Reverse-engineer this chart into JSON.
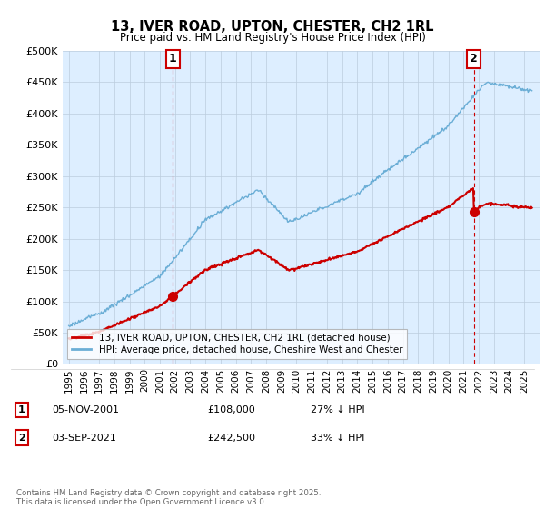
{
  "title": "13, IVER ROAD, UPTON, CHESTER, CH2 1RL",
  "subtitle": "Price paid vs. HM Land Registry's House Price Index (HPI)",
  "ylabel_ticks": [
    "£0",
    "£50K",
    "£100K",
    "£150K",
    "£200K",
    "£250K",
    "£300K",
    "£350K",
    "£400K",
    "£450K",
    "£500K"
  ],
  "ytick_values": [
    0,
    50000,
    100000,
    150000,
    200000,
    250000,
    300000,
    350000,
    400000,
    450000,
    500000
  ],
  "ylim": [
    0,
    500000
  ],
  "hpi_color": "#6baed6",
  "price_color": "#cc0000",
  "vline_color": "#cc0000",
  "plot_bg_color": "#ddeeff",
  "marker1_date": 2001.85,
  "marker1_price": 108000,
  "marker2_date": 2021.67,
  "marker2_price": 242500,
  "annotation1": "1",
  "annotation2": "2",
  "legend_label1": "13, IVER ROAD, UPTON, CHESTER, CH2 1RL (detached house)",
  "legend_label2": "HPI: Average price, detached house, Cheshire West and Chester",
  "table_row1": [
    "1",
    "05-NOV-2001",
    "£108,000",
    "27% ↓ HPI"
  ],
  "table_row2": [
    "2",
    "03-SEP-2021",
    "£242,500",
    "33% ↓ HPI"
  ],
  "footer": "Contains HM Land Registry data © Crown copyright and database right 2025.\nThis data is licensed under the Open Government Licence v3.0.",
  "background_color": "#ffffff",
  "grid_color": "#bbccdd"
}
